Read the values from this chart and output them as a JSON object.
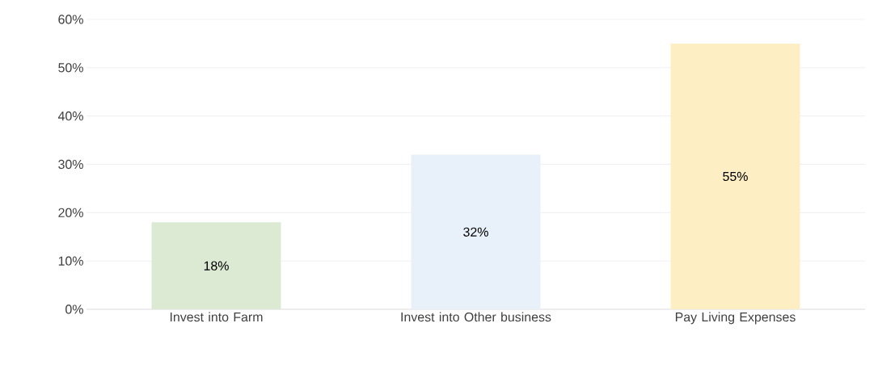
{
  "chart_data": {
    "type": "bar",
    "categories": [
      "Invest into Farm",
      "Invest into Other business",
      "Pay Living Expenses"
    ],
    "values": [
      18,
      32,
      55
    ],
    "colors": [
      "#dcead3",
      "#e8f0f9",
      "#fdeec3"
    ],
    "value_labels": [
      "18%",
      "32%",
      "55%"
    ],
    "ylim": [
      0,
      60
    ],
    "yticks": [
      {
        "value": 0,
        "label": "0%"
      },
      {
        "value": 10,
        "label": "10%"
      },
      {
        "value": 20,
        "label": "20%"
      },
      {
        "value": 30,
        "label": "30%"
      },
      {
        "value": 40,
        "label": "40%"
      },
      {
        "value": 50,
        "label": "50%"
      },
      {
        "value": 60,
        "label": "60%"
      }
    ],
    "grid": "y"
  }
}
